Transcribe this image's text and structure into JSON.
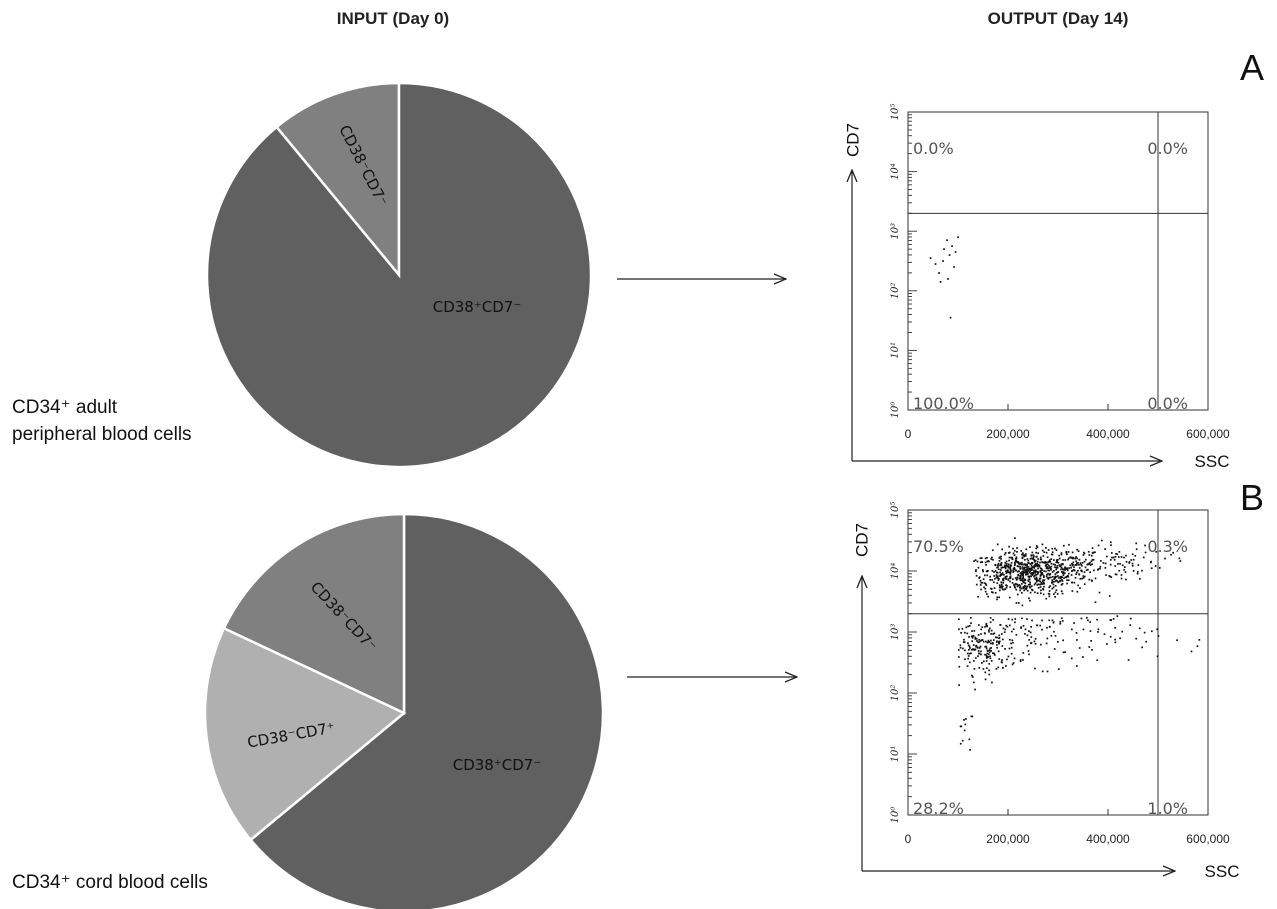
{
  "headers": {
    "input": "INPUT (Day 0)",
    "output": "OUTPUT (Day 14)"
  },
  "panels": [
    {
      "letter": "A",
      "caption_lines": [
        "CD34⁺ adult",
        "peripheral blood cells"
      ]
    },
    {
      "letter": "B",
      "caption_lines": [
        "CD34⁺ cord blood cells"
      ]
    }
  ],
  "chart_data": [
    {
      "type": "pie",
      "panel": "A",
      "slices": [
        {
          "label": "CD38⁻CD7⁻",
          "value": 11,
          "color": "#808080"
        },
        {
          "label": "CD38⁺CD7⁻",
          "value": 89,
          "color": "#606060"
        }
      ]
    },
    {
      "type": "scatter",
      "panel": "A",
      "xlabel": "SSC",
      "ylabel": "CD7",
      "xlim": [
        0,
        600000
      ],
      "ylim": [
        0,
        5
      ],
      "yscale": "log",
      "xticks": [
        "0",
        "200,000",
        "400,000",
        "600,000"
      ],
      "yticks": [
        "10⁰",
        "10¹",
        "10²",
        "10³",
        "10⁴",
        "10⁵"
      ],
      "gate_x": 500000,
      "gate_y": 3.3,
      "quadrants": {
        "ul": "0.0%",
        "ur": "0.0%",
        "ll": "100.0%",
        "lr": "0.0%"
      },
      "points": [
        [
          45000,
          2.55
        ],
        [
          55000,
          2.45
        ],
        [
          62000,
          2.3
        ],
        [
          70000,
          2.5
        ],
        [
          72000,
          2.7
        ],
        [
          78000,
          2.85
        ],
        [
          80000,
          2.2
        ],
        [
          83000,
          2.6
        ],
        [
          88000,
          2.75
        ],
        [
          95000,
          2.65
        ],
        [
          100000,
          2.9
        ],
        [
          65000,
          2.15
        ],
        [
          85000,
          1.55
        ],
        [
          92000,
          2.4
        ]
      ]
    },
    {
      "type": "pie",
      "panel": "B",
      "slices": [
        {
          "label": "CD38⁺CD7⁻",
          "value": 64,
          "color": "#606060"
        },
        {
          "label": "CD38⁻CD7⁺",
          "value": 18,
          "color": "#b0b0b0"
        },
        {
          "label": "CD38⁻CD7⁻",
          "value": 18,
          "color": "#808080"
        }
      ]
    },
    {
      "type": "scatter",
      "panel": "B",
      "xlabel": "SSC",
      "ylabel": "CD7",
      "xlim": [
        0,
        600000
      ],
      "ylim": [
        0,
        5
      ],
      "yscale": "log",
      "xticks": [
        "0",
        "200,000",
        "400,000",
        "600,000"
      ],
      "yticks": [
        "10⁰",
        "10¹",
        "10²",
        "10³",
        "10⁴",
        "10⁵"
      ],
      "gate_x": 500000,
      "gate_y": 3.3,
      "quadrants": {
        "ul": "70.5%",
        "ur": "0.3%",
        "ll": "28.2%",
        "lr": "1.0%"
      },
      "clusters": [
        {
          "n": 650,
          "x_mean": 240000,
          "x_sd": 60000,
          "y_mean": 3.95,
          "y_sd": 0.18,
          "x_min": 130000,
          "x_max": 560000,
          "y_min": 3.35,
          "y_max": 4.85
        },
        {
          "n": 200,
          "x_mean": 330000,
          "x_sd": 90000,
          "y_mean": 4.15,
          "y_sd": 0.15,
          "x_min": 150000,
          "x_max": 600000,
          "y_min": 3.35,
          "y_max": 4.9
        },
        {
          "n": 180,
          "x_mean": 150000,
          "x_sd": 35000,
          "y_mean": 2.75,
          "y_sd": 0.22,
          "x_min": 100000,
          "x_max": 300000,
          "y_min": 1.8,
          "y_max": 3.25
        },
        {
          "n": 130,
          "x_mean": 280000,
          "x_sd": 110000,
          "y_mean": 2.95,
          "y_sd": 0.25,
          "x_min": 150000,
          "x_max": 600000,
          "y_min": 2.1,
          "y_max": 3.28
        },
        {
          "n": 12,
          "x_mean": 115000,
          "x_sd": 10000,
          "y_mean": 1.5,
          "y_sd": 0.35,
          "x_min": 100000,
          "x_max": 130000,
          "y_min": 0.8,
          "y_max": 2.0
        }
      ]
    }
  ]
}
